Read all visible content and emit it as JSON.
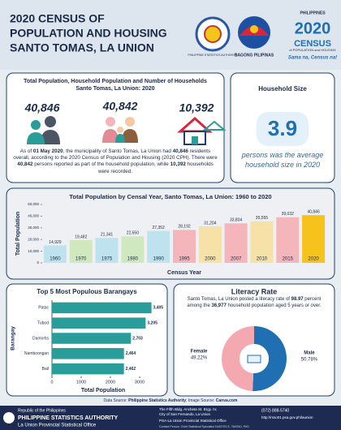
{
  "header": {
    "title": [
      "2020 CENSUS OF",
      "POPULATION AND HOUSING",
      "SANTO TOMAS, LA UNION"
    ],
    "logos": {
      "psa": "PHILIPPINE STATISTICS AUTHORITY",
      "bagong": "BAGONG PILIPINAS",
      "census_country": "PHILIPPINES",
      "census_year": "2020",
      "census_word": "CENSUS",
      "census_sub": "of POPULATION and HOUSING",
      "census_slogan": "Sama na, Census na!"
    }
  },
  "population_panel": {
    "title": [
      "Total Population, Household Population and Number of Households",
      "Santo Tomas, La Union: 2020"
    ],
    "figures": [
      "40,846",
      "40,842",
      "10,392"
    ],
    "summary": [
      "As of ",
      "01 May 2020",
      ", the municipality of Santo Tomas, La Union had ",
      "40,846",
      " residents overall, according to the 2020 Census of Population and Housing (2020 CPH). There were ",
      "40,842",
      " persons reported as part of the household population, while ",
      "10,392",
      " households were recorded."
    ]
  },
  "household_size": {
    "title": "Household Size",
    "value": 3.9,
    "caption": "persons was the average household size in 2020"
  },
  "chart_data": [
    {
      "type": "bar",
      "title": "Total Population by Censal Year, Santo Tomas, La Union: 1960 to 2020",
      "x_label": "Census Year",
      "y_label": "Total Population",
      "categories": [
        "1960",
        "1970",
        "1975",
        "1980",
        "1990",
        "1995",
        "2000",
        "2007",
        "2010",
        "2015",
        "2020"
      ],
      "values": [
        14929,
        19482,
        21341,
        22650,
        27352,
        28192,
        31204,
        33804,
        35555,
        39032,
        40846
      ],
      "value_labels": [
        "14,929",
        "19,482",
        "21,341",
        "22,650",
        "27,352",
        "28,192",
        "31,204",
        "33,804",
        "35,555",
        "39,032",
        "40,846"
      ],
      "colors": [
        "#bfe2ef",
        "#cfe8bd",
        "#bfe2ef",
        "#cfe8bd",
        "#bfe2ef",
        "#f4b6bb",
        "#f6e1a6",
        "#f4b6bb",
        "#f6e1a6",
        "#f4b6bb",
        "#f6c21c"
      ],
      "ylim": [
        0,
        50000
      ],
      "yticks": [
        0,
        {
          "value": 10000,
          "label": "10,000"
        },
        {
          "value": 20000,
          "label": "20,000"
        },
        {
          "value": 30000,
          "label": "30,000"
        },
        {
          "value": 40000,
          "label": "40,000"
        },
        {
          "value": 50000,
          "label": "50,000"
        }
      ]
    },
    {
      "type": "hbar",
      "title": "Top 5 Most Populous Barangays",
      "x_label": "Total Population",
      "y_label": "Barangay",
      "categories": [
        "Patac",
        "Tubod",
        "Damortis",
        "Namboongan",
        "Bail"
      ],
      "values": [
        3405,
        3205,
        2703,
        2464,
        2462
      ],
      "value_labels": [
        "3,405",
        "3,205",
        "2,703",
        "2,464",
        "2,462"
      ],
      "color": "#2a9c9a",
      "xlim": [
        0,
        3500
      ],
      "xticks": [
        0,
        1000,
        2000,
        3000
      ]
    },
    {
      "type": "donut",
      "title": "Literacy Rate",
      "categories": [
        "Male",
        "Female"
      ],
      "values": [
        50.78,
        49.22
      ],
      "value_labels": [
        "50.78%",
        "49.22%"
      ],
      "colors": [
        "#1f6fb2",
        "#f4a9b0"
      ]
    }
  ],
  "literacy_text": [
    "Santo Tomas, La Union posted a literacy rate of ",
    "98.97",
    " percent among the ",
    "36,977",
    " household population aged 5 years or over."
  ],
  "source": [
    "Data Source: ",
    "Philippine Statistics Authority",
    "; Image Source: ",
    "Canva.com"
  ],
  "footer": {
    "office": [
      "Republic of the Philippines",
      "PHILIPPINE STATISTICS AUTHORITY",
      "La Union Provincial Statistical Office"
    ],
    "address": [
      "The Fifth Bldg. Ancheta St. Brgy. IV,",
      "City of San Fernando, La Union"
    ],
    "facebook": "PSA-La Union Provincial Statistical Office",
    "phone": "(072) 888-5740",
    "website": "http://rsso01.psa.gov.ph/launion",
    "contact": "Contact Person: Chief Statistical Specialist DANTES E. TASSIO, PhD"
  }
}
